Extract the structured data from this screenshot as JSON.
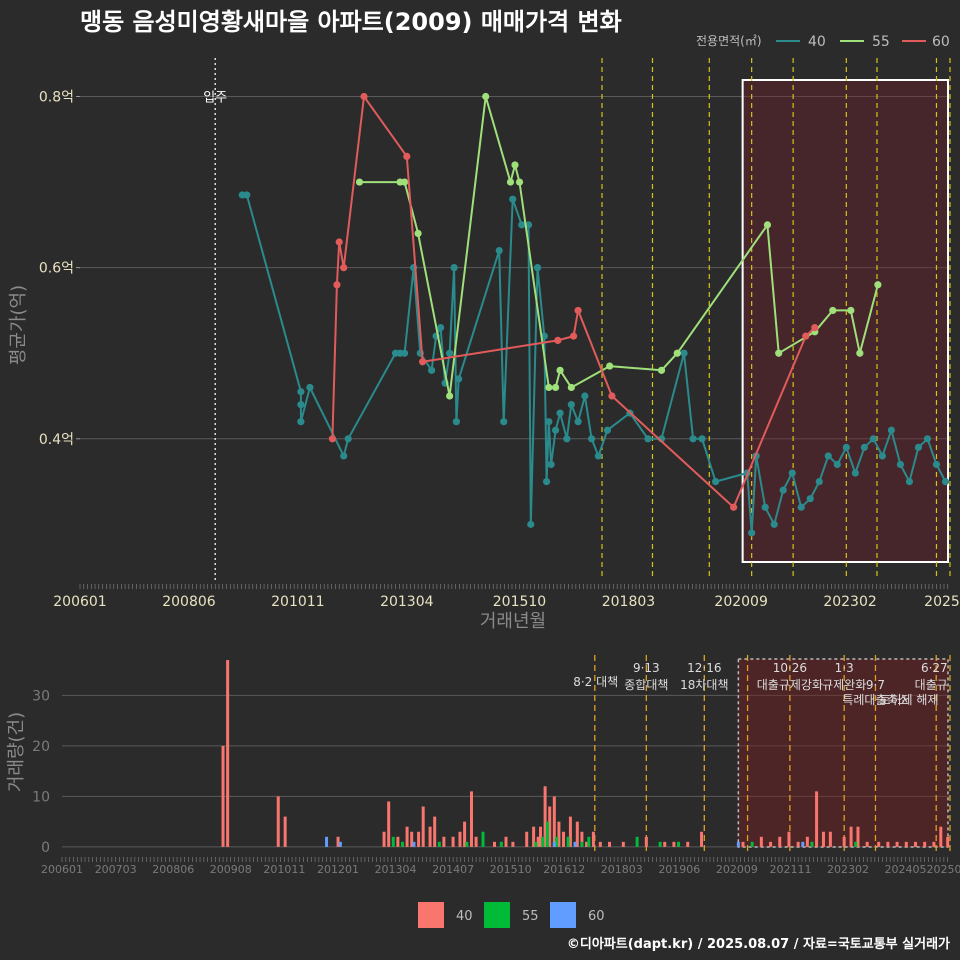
{
  "title": "맹동 음성미영황새마을 아파트(2009) 매매가격 변화",
  "credit": "©디아파트(dapt.kr) / 2025.08.07 / 자료=국토교통부 실거래가",
  "legend": {
    "title": "전용면적(㎡)",
    "items": [
      {
        "label": "40",
        "color": "#2a8a8c"
      },
      {
        "label": "55",
        "color": "#9fe07a"
      },
      {
        "label": "60",
        "color": "#e15b5b"
      }
    ]
  },
  "bar_legend": {
    "items": [
      {
        "label": "40",
        "color": "#f8766d"
      },
      {
        "label": "55",
        "color": "#00ba38"
      },
      {
        "label": "60",
        "color": "#619cff"
      }
    ]
  },
  "movein_label": "입주",
  "chart_data": [
    {
      "type": "line",
      "name": "price",
      "xlabel": "거래년월",
      "ylabel": "평균가(억)",
      "xlim": [
        2006.0,
        2025.3
      ],
      "ylim": [
        0.235,
        0.845
      ],
      "yticks": [
        {
          "v": 0.4,
          "label": "0.4억"
        },
        {
          "v": 0.6,
          "label": "0.6억"
        },
        {
          "v": 0.8,
          "label": "0.8억"
        }
      ],
      "xticks": [
        {
          "v": 2006.0,
          "label": "200601"
        },
        {
          "v": 2008.417,
          "label": "200806"
        },
        {
          "v": 2010.833,
          "label": "201011"
        },
        {
          "v": 2013.25,
          "label": "201304"
        },
        {
          "v": 2015.75,
          "label": "201510"
        },
        {
          "v": 2018.167,
          "label": "201803"
        },
        {
          "v": 2020.667,
          "label": "202009"
        },
        {
          "v": 2023.083,
          "label": "202302"
        },
        {
          "v": 2025.5,
          "label": "2025"
        }
      ],
      "movein": 2009.0,
      "policy_lines": [
        2017.58,
        2018.7,
        2019.96,
        2020.9,
        2021.82,
        2023.0,
        2023.68,
        2025.0,
        2025.3
      ],
      "highlight": {
        "from": 2020.7,
        "to": 2025.55
      },
      "series": [
        {
          "name": "40",
          "points": [
            [
              2009.6,
              0.685
            ],
            [
              2009.7,
              0.685
            ],
            [
              2010.9,
              0.455
            ],
            [
              2010.9,
              0.44
            ],
            [
              2010.9,
              0.42
            ],
            [
              2011.1,
              0.46
            ],
            [
              2011.85,
              0.38
            ],
            [
              2011.95,
              0.4
            ],
            [
              2013.0,
              0.5
            ],
            [
              2013.1,
              0.5
            ],
            [
              2013.2,
              0.5
            ],
            [
              2013.4,
              0.6
            ],
            [
              2013.55,
              0.5
            ],
            [
              2013.8,
              0.48
            ],
            [
              2013.9,
              0.52
            ],
            [
              2014.0,
              0.53
            ],
            [
              2014.1,
              0.465
            ],
            [
              2014.2,
              0.5
            ],
            [
              2014.3,
              0.6
            ],
            [
              2014.35,
              0.42
            ],
            [
              2014.4,
              0.47
            ],
            [
              2015.3,
              0.62
            ],
            [
              2015.4,
              0.42
            ],
            [
              2015.6,
              0.68
            ],
            [
              2015.8,
              0.65
            ],
            [
              2015.95,
              0.65
            ],
            [
              2016.0,
              0.3
            ],
            [
              2016.15,
              0.6
            ],
            [
              2016.3,
              0.52
            ],
            [
              2016.35,
              0.35
            ],
            [
              2016.4,
              0.42
            ],
            [
              2016.45,
              0.37
            ],
            [
              2016.55,
              0.41
            ],
            [
              2016.65,
              0.43
            ],
            [
              2016.8,
              0.4
            ],
            [
              2016.9,
              0.44
            ],
            [
              2017.05,
              0.42
            ],
            [
              2017.2,
              0.45
            ],
            [
              2017.35,
              0.4
            ],
            [
              2017.5,
              0.38
            ],
            [
              2017.7,
              0.41
            ],
            [
              2018.2,
              0.43
            ],
            [
              2018.6,
              0.4
            ],
            [
              2018.9,
              0.4
            ],
            [
              2019.4,
              0.5
            ],
            [
              2019.6,
              0.4
            ],
            [
              2019.8,
              0.4
            ],
            [
              2020.1,
              0.35
            ],
            [
              2020.8,
              0.36
            ],
            [
              2020.9,
              0.29
            ],
            [
              2021.0,
              0.38
            ],
            [
              2021.2,
              0.32
            ],
            [
              2021.4,
              0.3
            ],
            [
              2021.6,
              0.34
            ],
            [
              2021.8,
              0.36
            ],
            [
              2022.0,
              0.32
            ],
            [
              2022.2,
              0.33
            ],
            [
              2022.4,
              0.35
            ],
            [
              2022.6,
              0.38
            ],
            [
              2022.8,
              0.37
            ],
            [
              2023.0,
              0.39
            ],
            [
              2023.2,
              0.36
            ],
            [
              2023.4,
              0.39
            ],
            [
              2023.6,
              0.4
            ],
            [
              2023.8,
              0.38
            ],
            [
              2024.0,
              0.41
            ],
            [
              2024.2,
              0.37
            ],
            [
              2024.4,
              0.35
            ],
            [
              2024.6,
              0.39
            ],
            [
              2024.8,
              0.4
            ],
            [
              2025.0,
              0.37
            ],
            [
              2025.2,
              0.35
            ]
          ]
        },
        {
          "name": "55",
          "points": [
            [
              2012.2,
              0.7
            ],
            [
              2013.1,
              0.7
            ],
            [
              2013.2,
              0.7
            ],
            [
              2013.5,
              0.64
            ],
            [
              2014.2,
              0.45
            ],
            [
              2015.0,
              0.8
            ],
            [
              2015.55,
              0.7
            ],
            [
              2015.65,
              0.72
            ],
            [
              2015.75,
              0.7
            ],
            [
              2016.4,
              0.46
            ],
            [
              2016.55,
              0.46
            ],
            [
              2016.65,
              0.48
            ],
            [
              2016.9,
              0.46
            ],
            [
              2017.75,
              0.485
            ],
            [
              2018.9,
              0.48
            ],
            [
              2019.25,
              0.5
            ],
            [
              2021.25,
              0.65
            ],
            [
              2021.5,
              0.5
            ],
            [
              2022.3,
              0.525
            ],
            [
              2022.7,
              0.55
            ],
            [
              2023.1,
              0.55
            ],
            [
              2023.3,
              0.5
            ],
            [
              2023.7,
              0.58
            ]
          ]
        },
        {
          "name": "60",
          "points": [
            [
              2011.6,
              0.4
            ],
            [
              2011.7,
              0.58
            ],
            [
              2011.75,
              0.63
            ],
            [
              2011.85,
              0.6
            ],
            [
              2012.3,
              0.8
            ],
            [
              2013.25,
              0.73
            ],
            [
              2013.6,
              0.49
            ],
            [
              2016.6,
              0.515
            ],
            [
              2016.95,
              0.52
            ],
            [
              2017.05,
              0.55
            ],
            [
              2017.8,
              0.45
            ],
            [
              2020.5,
              0.32
            ],
            [
              2022.1,
              0.52
            ],
            [
              2022.3,
              0.53
            ]
          ]
        }
      ]
    },
    {
      "type": "bar",
      "name": "volume",
      "xlabel": "",
      "ylabel": "거래량(건)",
      "xlim": [
        2006.0,
        2025.3
      ],
      "ylim": [
        -2,
        38
      ],
      "yticks": [
        {
          "v": 0,
          "label": "0"
        },
        {
          "v": 10,
          "label": "10"
        },
        {
          "v": 20,
          "label": "20"
        },
        {
          "v": 30,
          "label": "30"
        }
      ],
      "xticks": [
        {
          "v": 2006.0,
          "label": "200601"
        },
        {
          "v": 2007.167,
          "label": "200703"
        },
        {
          "v": 2008.417,
          "label": "200806"
        },
        {
          "v": 2009.667,
          "label": "200908"
        },
        {
          "v": 2010.833,
          "label": "201011"
        },
        {
          "v": 2012.0,
          "label": "201201"
        },
        {
          "v": 2013.25,
          "label": "201304"
        },
        {
          "v": 2014.5,
          "label": "201407"
        },
        {
          "v": 2015.75,
          "label": "201510"
        },
        {
          "v": 2016.917,
          "label": "201612"
        },
        {
          "v": 2018.167,
          "label": "201803"
        },
        {
          "v": 2019.417,
          "label": "201906"
        },
        {
          "v": 2020.667,
          "label": "202009"
        },
        {
          "v": 2021.833,
          "label": "202111"
        },
        {
          "v": 2023.083,
          "label": "202302"
        },
        {
          "v": 2024.333,
          "label": "202405"
        },
        {
          "v": 2025.5,
          "label": "20250"
        }
      ],
      "policy_lines": [
        2017.58,
        2018.7,
        2019.96,
        2020.9,
        2021.82,
        2023.0,
        2023.68,
        2025.0,
        2025.3
      ],
      "highlight": {
        "from": 2020.7,
        "to": 2025.55
      },
      "policy_labels": [
        {
          "x": 2017.6,
          "row": 1,
          "text": "8·2 대책"
        },
        {
          "x": 2018.7,
          "row": 0,
          "text": "9·13"
        },
        {
          "x": 2018.7,
          "row": 1.2,
          "text": "종합대책"
        },
        {
          "x": 2019.96,
          "row": 0,
          "text": "12·16"
        },
        {
          "x": 2019.96,
          "row": 1.2,
          "text": "18차대책"
        },
        {
          "x": 2021.82,
          "row": 0,
          "text": "10·26"
        },
        {
          "x": 2021.82,
          "row": 1.2,
          "text": "대출규제강화"
        },
        {
          "x": 2023.0,
          "row": 0,
          "text": "1·3"
        },
        {
          "x": 2023.0,
          "row": 1.2,
          "text": "규제완화"
        },
        {
          "x": 2023.68,
          "row": 1.2,
          "text": "9·7"
        },
        {
          "x": 2023.68,
          "row": 2.3,
          "text": "특례대출축소"
        },
        {
          "x": 2025.25,
          "row": 0,
          "text": "6·27"
        },
        {
          "x": 2025.25,
          "row": 1.2,
          "text": "대출규"
        },
        {
          "x": 2025.05,
          "row": 2.3,
          "text": "토허제 해제"
        }
      ],
      "series": [
        {
          "name": "40",
          "bars": [
            [
              2009.5,
              20
            ],
            [
              2009.6,
              37
            ],
            [
              2010.7,
              10
            ],
            [
              2010.85,
              6
            ],
            [
              2012.0,
              2
            ],
            [
              2013.0,
              3
            ],
            [
              2013.1,
              9
            ],
            [
              2013.3,
              2
            ],
            [
              2013.5,
              4
            ],
            [
              2013.6,
              3
            ],
            [
              2013.75,
              3
            ],
            [
              2013.85,
              8
            ],
            [
              2014.0,
              4
            ],
            [
              2014.1,
              6
            ],
            [
              2014.3,
              2
            ],
            [
              2014.5,
              2
            ],
            [
              2014.65,
              3
            ],
            [
              2014.75,
              5
            ],
            [
              2014.9,
              11
            ],
            [
              2015.0,
              2
            ],
            [
              2015.4,
              1
            ],
            [
              2015.65,
              2
            ],
            [
              2015.8,
              1
            ],
            [
              2016.1,
              3
            ],
            [
              2016.25,
              4
            ],
            [
              2016.35,
              2
            ],
            [
              2016.4,
              4
            ],
            [
              2016.5,
              12
            ],
            [
              2016.6,
              8
            ],
            [
              2016.7,
              10
            ],
            [
              2016.8,
              5
            ],
            [
              2016.9,
              3
            ],
            [
              2017.05,
              6
            ],
            [
              2017.2,
              5
            ],
            [
              2017.3,
              3
            ],
            [
              2017.4,
              1
            ],
            [
              2017.55,
              3
            ],
            [
              2017.7,
              1
            ],
            [
              2017.9,
              1
            ],
            [
              2018.2,
              1
            ],
            [
              2018.7,
              2
            ],
            [
              2019.1,
              1
            ],
            [
              2019.3,
              1
            ],
            [
              2019.6,
              1
            ],
            [
              2019.9,
              3
            ],
            [
              2020.8,
              1
            ],
            [
              2021.2,
              2
            ],
            [
              2021.4,
              1
            ],
            [
              2021.6,
              2
            ],
            [
              2021.8,
              3
            ],
            [
              2022.0,
              1
            ],
            [
              2022.2,
              2
            ],
            [
              2022.4,
              11
            ],
            [
              2022.55,
              3
            ],
            [
              2022.7,
              3
            ],
            [
              2023.0,
              2
            ],
            [
              2023.15,
              4
            ],
            [
              2023.3,
              4
            ],
            [
              2023.5,
              1
            ],
            [
              2023.75,
              1
            ],
            [
              2023.95,
              1
            ],
            [
              2024.15,
              1
            ],
            [
              2024.35,
              1
            ],
            [
              2024.55,
              1
            ],
            [
              2024.75,
              1
            ],
            [
              2024.95,
              1
            ],
            [
              2025.1,
              4
            ],
            [
              2025.25,
              2
            ]
          ]
        },
        {
          "name": "55",
          "bars": [
            [
              2013.2,
              2
            ],
            [
              2013.4,
              1
            ],
            [
              2014.2,
              1
            ],
            [
              2014.8,
              1
            ],
            [
              2015.15,
              3
            ],
            [
              2015.55,
              1
            ],
            [
              2016.3,
              1
            ],
            [
              2016.45,
              2
            ],
            [
              2016.55,
              5
            ],
            [
              2016.75,
              2
            ],
            [
              2017.0,
              2
            ],
            [
              2017.3,
              1
            ],
            [
              2017.45,
              2
            ],
            [
              2018.5,
              2
            ],
            [
              2019.0,
              1
            ],
            [
              2019.4,
              1
            ],
            [
              2021.0,
              1
            ],
            [
              2022.3,
              1
            ],
            [
              2023.25,
              1
            ]
          ]
        },
        {
          "name": "60",
          "bars": [
            [
              2011.75,
              2
            ],
            [
              2012.05,
              1
            ],
            [
              2013.65,
              1
            ],
            [
              2016.7,
              1
            ],
            [
              2017.15,
              1
            ],
            [
              2020.7,
              1
            ],
            [
              2022.1,
              1
            ]
          ]
        }
      ]
    }
  ]
}
